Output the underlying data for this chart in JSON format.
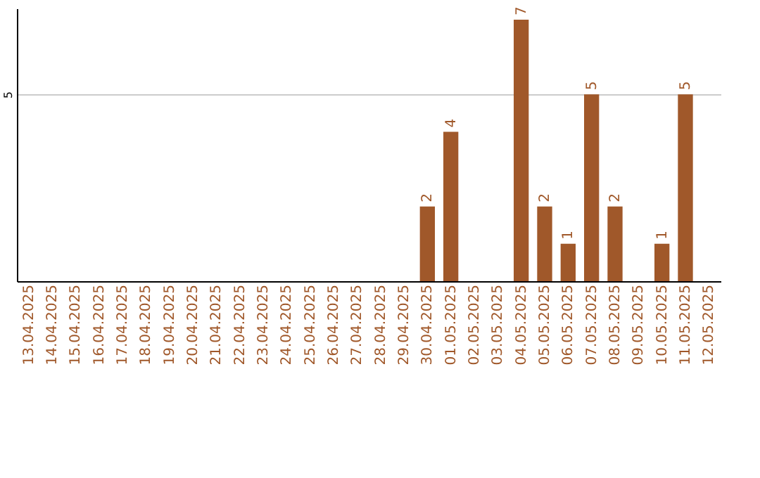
{
  "chart_data": {
    "type": "bar",
    "categories": [
      "13.04.2025",
      "14.04.2025",
      "15.04.2025",
      "16.04.2025",
      "17.04.2025",
      "18.04.2025",
      "19.04.2025",
      "20.04.2025",
      "21.04.2025",
      "22.04.2025",
      "23.04.2025",
      "24.04.2025",
      "25.04.2025",
      "26.04.2025",
      "27.04.2025",
      "28.04.2025",
      "29.04.2025",
      "30.04.2025",
      "01.05.2025",
      "02.05.2025",
      "03.05.2025",
      "04.05.2025",
      "05.05.2025",
      "06.05.2025",
      "07.05.2025",
      "08.05.2025",
      "09.05.2025",
      "10.05.2025",
      "11.05.2025",
      "12.05.2025"
    ],
    "values": [
      null,
      null,
      null,
      null,
      null,
      null,
      null,
      null,
      null,
      null,
      null,
      null,
      null,
      null,
      null,
      null,
      null,
      2,
      4,
      null,
      null,
      7,
      2,
      1,
      5,
      2,
      null,
      1,
      5,
      null
    ],
    "color": "#a0582a",
    "ylim": [
      0,
      7.3
    ],
    "yticks": [
      5
    ],
    "grid": "y",
    "data_labels": true
  }
}
